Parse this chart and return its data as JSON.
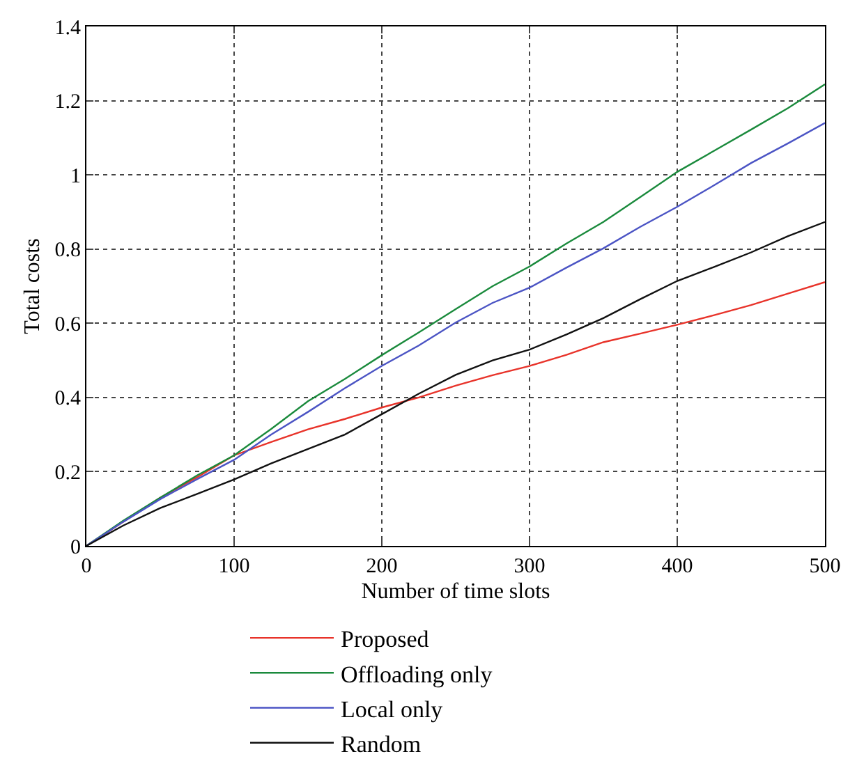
{
  "chart_data": {
    "type": "line",
    "xlabel": "Number of time slots",
    "ylabel": "Total costs",
    "xlim": [
      0,
      500
    ],
    "ylim": [
      0,
      1.4
    ],
    "xticks": [
      0,
      100,
      200,
      300,
      400,
      500
    ],
    "yticks": [
      0,
      0.2,
      0.4,
      0.6,
      0.8,
      1,
      1.2,
      1.4
    ],
    "grid": true,
    "legend": "bottom",
    "marker": "none",
    "line_style": "solid",
    "x": [
      0,
      25,
      50,
      75,
      100,
      125,
      150,
      175,
      200,
      225,
      250,
      275,
      300,
      325,
      350,
      375,
      400,
      425,
      450,
      475,
      500
    ],
    "series": [
      {
        "name": "Proposed",
        "color": "#e8332a",
        "values": [
          0,
          0.065,
          0.13,
          0.185,
          0.244,
          0.28,
          0.314,
          0.342,
          0.373,
          0.4,
          0.432,
          0.46,
          0.485,
          0.515,
          0.549,
          0.572,
          0.596,
          0.622,
          0.649,
          0.68,
          0.711
        ]
      },
      {
        "name": "Offloading only",
        "color": "#1a8a3c",
        "values": [
          0,
          0.068,
          0.13,
          0.19,
          0.244,
          0.315,
          0.39,
          0.45,
          0.514,
          0.575,
          0.638,
          0.7,
          0.753,
          0.815,
          0.873,
          0.94,
          1.008,
          1.065,
          1.122,
          1.18,
          1.244
        ]
      },
      {
        "name": "Local only",
        "color": "#4b54c4",
        "values": [
          0,
          0.065,
          0.126,
          0.18,
          0.232,
          0.3,
          0.361,
          0.425,
          0.485,
          0.54,
          0.602,
          0.655,
          0.696,
          0.75,
          0.802,
          0.86,
          0.914,
          0.972,
          1.032,
          1.085,
          1.14
        ]
      },
      {
        "name": "Random",
        "color": "#111111",
        "values": [
          0,
          0.055,
          0.102,
          0.14,
          0.179,
          0.222,
          0.261,
          0.3,
          0.355,
          0.41,
          0.461,
          0.5,
          0.529,
          0.57,
          0.614,
          0.665,
          0.714,
          0.752,
          0.791,
          0.835,
          0.873
        ]
      }
    ]
  }
}
